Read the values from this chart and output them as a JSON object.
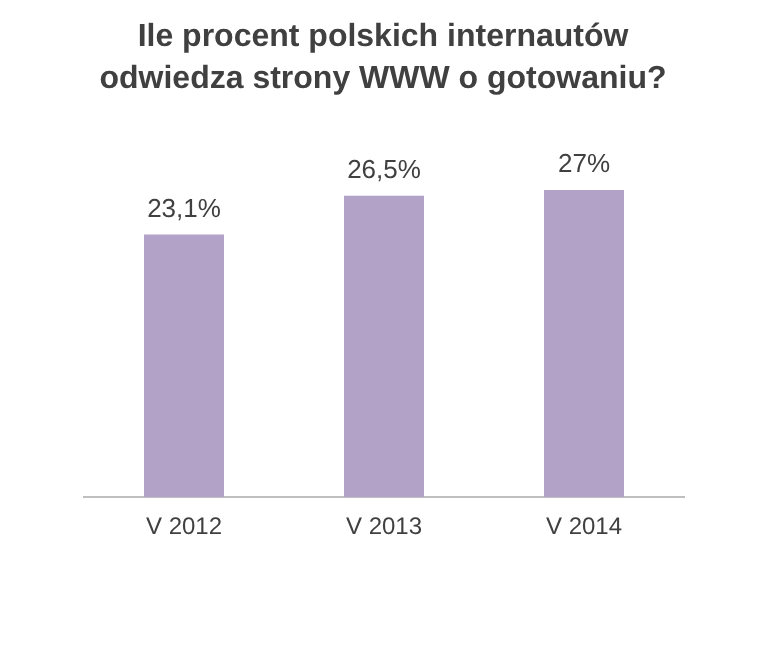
{
  "chart_data": {
    "type": "bar",
    "title": "Ile procent polskich internautów odwiedza strony WWW o gotowaniu?",
    "categories": [
      "V 2012",
      "V 2013",
      "V 2014"
    ],
    "values": [
      23.1,
      26.5,
      27
    ],
    "value_labels": [
      "23,1%",
      "26,5%",
      "27%"
    ],
    "color": "#b3a2c7",
    "grid": false,
    "legend": false
  }
}
